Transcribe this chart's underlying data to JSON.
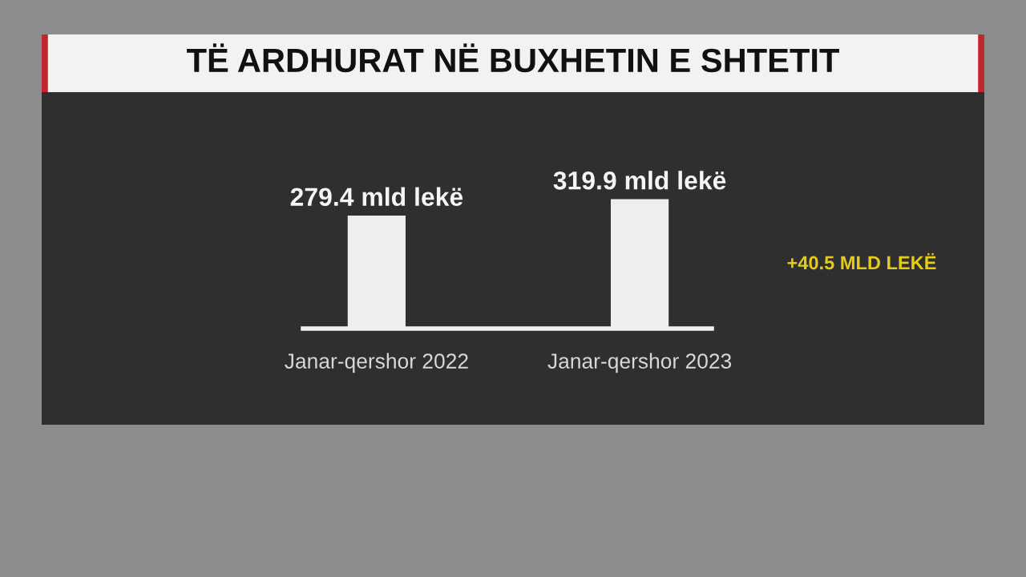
{
  "chart_data": {
    "type": "bar",
    "title": "TË ARDHURAT NË BUXHETIN E SHTETIT",
    "categories": [
      "Janar-qershor 2022",
      "Janar-qershor 2023"
    ],
    "values": [
      279.4,
      319.9
    ],
    "value_labels": [
      "279.4 mld lekë",
      "319.9 mld lekë"
    ],
    "color": "#eeeeee",
    "annotations": [
      "+40.5 MLD LEKË"
    ]
  }
}
